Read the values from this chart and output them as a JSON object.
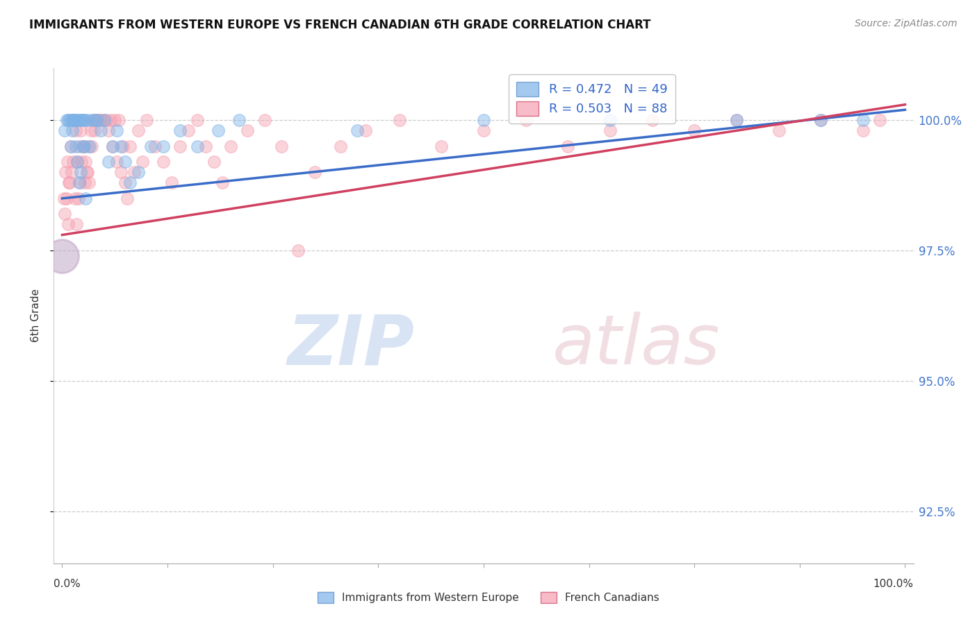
{
  "title": "IMMIGRANTS FROM WESTERN EUROPE VS FRENCH CANADIAN 6TH GRADE CORRELATION CHART",
  "source": "Source: ZipAtlas.com",
  "ylabel": "6th Grade",
  "ylim": [
    91.5,
    101.0
  ],
  "xlim": [
    -1.0,
    101.0
  ],
  "yticks": [
    92.5,
    95.0,
    97.5,
    100.0
  ],
  "ytick_labels": [
    "92.5%",
    "95.0%",
    "97.5%",
    "100.0%"
  ],
  "blue_R": 0.472,
  "blue_N": 49,
  "pink_R": 0.503,
  "pink_N": 88,
  "blue_color": "#7EB3E8",
  "pink_color": "#F5A0B0",
  "trendline_blue": "#3A6CC8",
  "trendline_pink": "#D04060",
  "blue_label": "Immigrants from Western Europe",
  "pink_label": "French Canadians",
  "blue_scatter_x": [
    0.3,
    0.5,
    0.7,
    0.9,
    1.1,
    1.3,
    1.5,
    1.7,
    1.9,
    2.1,
    2.3,
    2.5,
    2.7,
    3.0,
    3.3,
    3.6,
    3.9,
    4.2,
    4.6,
    5.0,
    5.5,
    6.0,
    6.5,
    7.0,
    7.5,
    8.0,
    9.0,
    10.5,
    12.0,
    14.0,
    16.0,
    18.5,
    21.0,
    35.0,
    50.0,
    65.0,
    80.0,
    90.0,
    95.0,
    1.0,
    1.2,
    1.4,
    1.6,
    1.8,
    2.0,
    2.2,
    2.4,
    2.6,
    2.8
  ],
  "blue_scatter_y": [
    99.8,
    100.0,
    100.0,
    100.0,
    100.0,
    100.0,
    100.0,
    100.0,
    100.0,
    100.0,
    100.0,
    100.0,
    100.0,
    100.0,
    99.5,
    100.0,
    100.0,
    100.0,
    99.8,
    100.0,
    99.2,
    99.5,
    99.8,
    99.5,
    99.2,
    98.8,
    99.0,
    99.5,
    99.5,
    99.8,
    99.5,
    99.8,
    100.0,
    99.8,
    100.0,
    100.0,
    100.0,
    100.0,
    100.0,
    99.5,
    99.8,
    100.0,
    99.5,
    99.2,
    98.8,
    99.0,
    99.5,
    99.5,
    98.5
  ],
  "blue_large_x": [
    0.0
  ],
  "blue_large_y": [
    97.4
  ],
  "pink_scatter_x": [
    0.2,
    0.4,
    0.6,
    0.8,
    1.0,
    1.2,
    1.4,
    1.6,
    1.8,
    2.0,
    2.2,
    2.4,
    2.6,
    2.8,
    3.0,
    3.2,
    3.5,
    3.8,
    4.1,
    4.5,
    5.0,
    5.5,
    6.0,
    6.5,
    7.0,
    7.5,
    8.0,
    9.0,
    10.0,
    11.0,
    12.0,
    13.0,
    14.0,
    15.0,
    16.0,
    17.0,
    18.0,
    19.0,
    20.0,
    22.0,
    24.0,
    26.0,
    28.0,
    30.0,
    33.0,
    36.0,
    40.0,
    45.0,
    50.0,
    55.0,
    60.0,
    65.0,
    70.0,
    75.0,
    80.0,
    85.0,
    90.0,
    95.0,
    97.0,
    0.3,
    0.5,
    0.7,
    0.9,
    1.1,
    1.3,
    1.5,
    1.7,
    1.9,
    2.1,
    2.3,
    2.5,
    2.7,
    2.9,
    3.1,
    3.4,
    3.7,
    4.0,
    4.3,
    4.7,
    5.2,
    5.7,
    6.2,
    6.7,
    7.2,
    7.7,
    8.5,
    9.5
  ],
  "pink_scatter_y": [
    98.5,
    99.0,
    99.2,
    98.8,
    99.5,
    100.0,
    100.0,
    99.8,
    99.2,
    99.5,
    99.8,
    100.0,
    99.5,
    99.2,
    99.0,
    98.8,
    99.5,
    99.8,
    100.0,
    100.0,
    100.0,
    99.8,
    99.5,
    99.2,
    99.0,
    98.8,
    99.5,
    99.8,
    100.0,
    99.5,
    99.2,
    98.8,
    99.5,
    99.8,
    100.0,
    99.5,
    99.2,
    98.8,
    99.5,
    99.8,
    100.0,
    99.5,
    97.5,
    99.0,
    99.5,
    99.8,
    100.0,
    99.5,
    99.8,
    100.0,
    99.5,
    99.8,
    100.0,
    99.8,
    100.0,
    99.8,
    100.0,
    99.8,
    100.0,
    98.2,
    98.5,
    98.0,
    98.8,
    99.0,
    99.2,
    98.5,
    98.0,
    98.5,
    98.8,
    99.2,
    99.5,
    98.8,
    99.0,
    99.5,
    99.8,
    100.0,
    100.0,
    100.0,
    100.0,
    100.0,
    100.0,
    100.0,
    100.0,
    99.5,
    98.5,
    99.0,
    99.2
  ],
  "pink_large_x": [
    0.0
  ],
  "pink_large_y": [
    97.4
  ],
  "watermark_zip": "ZIP",
  "watermark_atlas": "atlas",
  "background_color": "#ffffff",
  "grid_color": "#cccccc",
  "trendline_blue_start_x": 0.0,
  "trendline_blue_start_y": 98.5,
  "trendline_blue_end_x": 100.0,
  "trendline_blue_end_y": 100.2,
  "trendline_pink_start_x": 0.0,
  "trendline_pink_start_y": 97.8,
  "trendline_pink_end_x": 100.0,
  "trendline_pink_end_y": 100.3
}
